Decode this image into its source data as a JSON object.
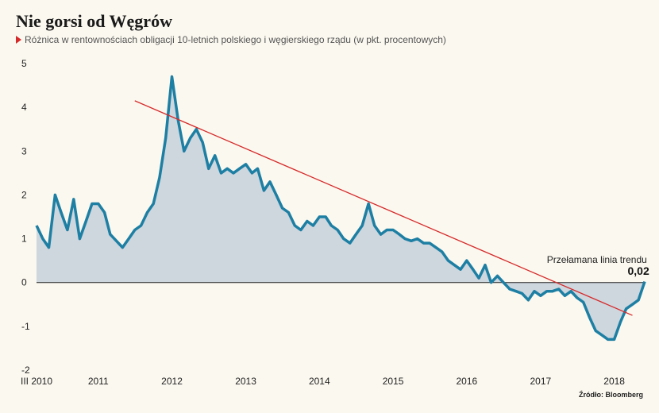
{
  "title": "Nie gorsi od Węgrów",
  "subtitle": "Różnica w rentownościach obligacji 10-letnich polskiego i węgierskiego rządu (w pkt. procentowych)",
  "source": "Źródło: Bloomberg",
  "colors": {
    "series": "#1d7fa3",
    "area": "#c9d2dc",
    "trend": "#d62a2a",
    "background": "#fbf8ef"
  },
  "chart_data": {
    "type": "area",
    "title": "Nie gorsi od Węgrów",
    "subtitle": "Różnica w rentownościach obligacji 10-letnich polskiego i węgierskiego rządu (w pkt. procentowych)",
    "xlabel": "",
    "ylabel": "",
    "xlim": [
      "2010-03-01",
      "2018-06-01"
    ],
    "ylim": [
      -2,
      5
    ],
    "x_tick_labels": [
      "III 2010",
      "2011",
      "2012",
      "2013",
      "2014",
      "2015",
      "2016",
      "2017",
      "2018"
    ],
    "x_ticks": [
      "2010-03-01",
      "2011-01-01",
      "2012-01-01",
      "2013-01-01",
      "2014-01-01",
      "2015-01-01",
      "2016-01-01",
      "2017-01-01",
      "2018-01-01"
    ],
    "y_ticks": [
      5,
      4,
      3,
      2,
      1,
      0,
      -1,
      -2
    ],
    "grid": false,
    "series": [
      {
        "x": [
          "2010-03-01",
          "2010-04-01",
          "2010-05-01",
          "2010-06-01",
          "2010-07-01",
          "2010-08-01",
          "2010-09-01",
          "2010-10-01",
          "2010-11-01",
          "2010-12-01",
          "2011-01-01",
          "2011-02-01",
          "2011-03-01",
          "2011-04-01",
          "2011-05-01",
          "2011-06-01",
          "2011-07-01",
          "2011-08-01",
          "2011-09-01",
          "2011-10-01",
          "2011-11-01",
          "2011-12-01",
          "2012-01-01",
          "2012-02-01",
          "2012-03-01",
          "2012-04-01",
          "2012-05-01",
          "2012-06-01",
          "2012-07-01",
          "2012-08-01",
          "2012-09-01",
          "2012-10-01",
          "2012-11-01",
          "2012-12-01",
          "2013-01-01",
          "2013-02-01",
          "2013-03-01",
          "2013-04-01",
          "2013-05-01",
          "2013-06-01",
          "2013-07-01",
          "2013-08-01",
          "2013-09-01",
          "2013-10-01",
          "2013-11-01",
          "2013-12-01",
          "2014-01-01",
          "2014-02-01",
          "2014-03-01",
          "2014-04-01",
          "2014-05-01",
          "2014-06-01",
          "2014-07-01",
          "2014-08-01",
          "2014-09-01",
          "2014-10-01",
          "2014-11-01",
          "2014-12-01",
          "2015-01-01",
          "2015-02-01",
          "2015-03-01",
          "2015-04-01",
          "2015-05-01",
          "2015-06-01",
          "2015-07-01",
          "2015-08-01",
          "2015-09-01",
          "2015-10-01",
          "2015-11-01",
          "2015-12-01",
          "2016-01-01",
          "2016-02-01",
          "2016-03-01",
          "2016-04-01",
          "2016-05-01",
          "2016-06-01",
          "2016-07-01",
          "2016-08-01",
          "2016-09-01",
          "2016-10-01",
          "2016-11-01",
          "2016-12-01",
          "2017-01-01",
          "2017-02-01",
          "2017-03-01",
          "2017-04-01",
          "2017-05-01",
          "2017-06-01",
          "2017-07-01",
          "2017-08-01",
          "2017-09-01",
          "2017-10-01",
          "2017-11-01",
          "2017-12-01",
          "2018-01-01",
          "2018-02-01",
          "2018-03-01",
          "2018-04-01",
          "2018-05-01",
          "2018-06-01"
        ],
        "values": [
          1.3,
          1.0,
          0.8,
          2.0,
          1.6,
          1.2,
          1.9,
          1.0,
          1.4,
          1.8,
          1.8,
          1.6,
          1.1,
          0.95,
          0.8,
          1.0,
          1.2,
          1.3,
          1.6,
          1.8,
          2.4,
          3.3,
          4.7,
          3.7,
          3.0,
          3.3,
          3.5,
          3.2,
          2.6,
          2.9,
          2.5,
          2.6,
          2.5,
          2.6,
          2.7,
          2.5,
          2.6,
          2.1,
          2.3,
          2.0,
          1.7,
          1.6,
          1.3,
          1.2,
          1.4,
          1.3,
          1.5,
          1.5,
          1.3,
          1.2,
          1.0,
          0.9,
          1.1,
          1.3,
          1.8,
          1.3,
          1.1,
          1.2,
          1.2,
          1.1,
          1.0,
          0.95,
          1.0,
          0.9,
          0.9,
          0.8,
          0.7,
          0.5,
          0.4,
          0.3,
          0.5,
          0.3,
          0.1,
          0.4,
          0.0,
          0.15,
          0.0,
          -0.15,
          -0.2,
          -0.25,
          -0.4,
          -0.2,
          -0.3,
          -0.2,
          -0.2,
          -0.15,
          -0.3,
          -0.2,
          -0.35,
          -0.45,
          -0.8,
          -1.1,
          -1.2,
          -1.3,
          -1.3,
          -0.9,
          -0.6,
          -0.5,
          -0.4,
          0.02
        ]
      }
    ],
    "trend_line": {
      "x": [
        "2011-07-01",
        "2018-04-01"
      ],
      "values": [
        4.15,
        -0.75
      ]
    },
    "annotations": [
      {
        "text": "Przełamana linia trendu",
        "x": "2017-02-01",
        "y": 0.45
      },
      {
        "text": "0,02",
        "x": "2018-05-01",
        "y": 0.18
      }
    ]
  }
}
